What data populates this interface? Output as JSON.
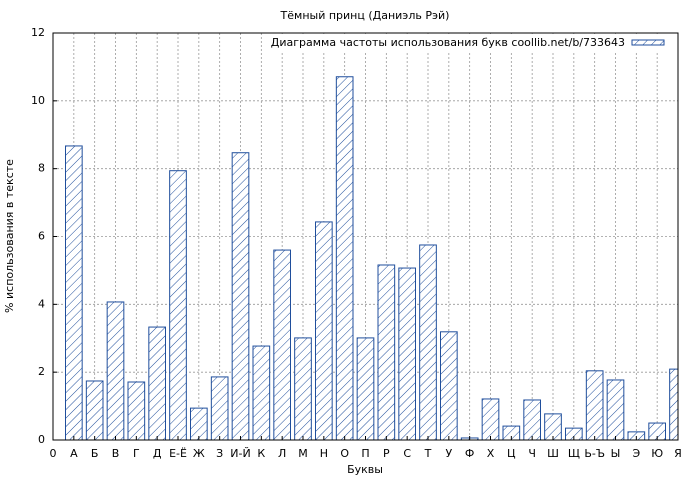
{
  "chart_data": {
    "type": "bar",
    "title": "Тёмный принц (Даниэль Рэй)",
    "x_label": "Буквы",
    "y_label": "% использования в тексте",
    "x": [
      1,
      2,
      3,
      4,
      5,
      6,
      7,
      8,
      9,
      10,
      11,
      12,
      13,
      14,
      15,
      16,
      17,
      18,
      19,
      20,
      21,
      22,
      23,
      24,
      25,
      26,
      27,
      28,
      29,
      30
    ],
    "series": [
      {
        "name": "Диаграмма частоты использования букв coollib.net/b/733643",
        "color": "#1f4e9c",
        "values": [
          8.67,
          1.74,
          4.07,
          1.71,
          3.33,
          7.94,
          0.94,
          1.86,
          8.47,
          2.77,
          5.6,
          3.01,
          6.43,
          10.71,
          3.01,
          5.16,
          5.07,
          5.75,
          3.19,
          0.06,
          1.21,
          0.41,
          1.18,
          0.77,
          0.35,
          2.04,
          1.77,
          0.24,
          0.5,
          2.09
        ]
      }
    ],
    "xlim": [
      0,
      30
    ],
    "ylim": [
      0,
      12
    ],
    "xticks": [
      0,
      {
        "value": 1,
        "label": "А"
      },
      {
        "value": 2,
        "label": "Б"
      },
      {
        "value": 3,
        "label": "В"
      },
      {
        "value": 4,
        "label": "Г"
      },
      {
        "value": 5,
        "label": "Д"
      },
      {
        "value": 6,
        "label": "Е-Ё"
      },
      {
        "value": 7,
        "label": "Ж"
      },
      {
        "value": 8,
        "label": "З"
      },
      {
        "value": 9,
        "label": "И-Й"
      },
      {
        "value": 10,
        "label": "К"
      },
      {
        "value": 11,
        "label": "Л"
      },
      {
        "value": 12,
        "label": "М"
      },
      {
        "value": 13,
        "label": "Н"
      },
      {
        "value": 14,
        "label": "О"
      },
      {
        "value": 15,
        "label": "П"
      },
      {
        "value": 16,
        "label": "Р"
      },
      {
        "value": 17,
        "label": "С"
      },
      {
        "value": 18,
        "label": "Т"
      },
      {
        "value": 19,
        "label": "У"
      },
      {
        "value": 20,
        "label": "Ф"
      },
      {
        "value": 21,
        "label": "Х"
      },
      {
        "value": 22,
        "label": "Ц"
      },
      {
        "value": 23,
        "label": "Ч"
      },
      {
        "value": 24,
        "label": "Ш"
      },
      {
        "value": 25,
        "label": "Щ"
      },
      {
        "value": 26,
        "label": "Ь-Ъ"
      },
      {
        "value": 27,
        "label": "Ы"
      },
      {
        "value": 28,
        "label": "Э"
      },
      {
        "value": 29,
        "label": "Ю"
      },
      {
        "value": 30,
        "label": "Я"
      }
    ],
    "yticks": [
      0,
      2,
      4,
      6,
      8,
      10,
      12
    ],
    "grid": true,
    "legend": "upper right"
  }
}
